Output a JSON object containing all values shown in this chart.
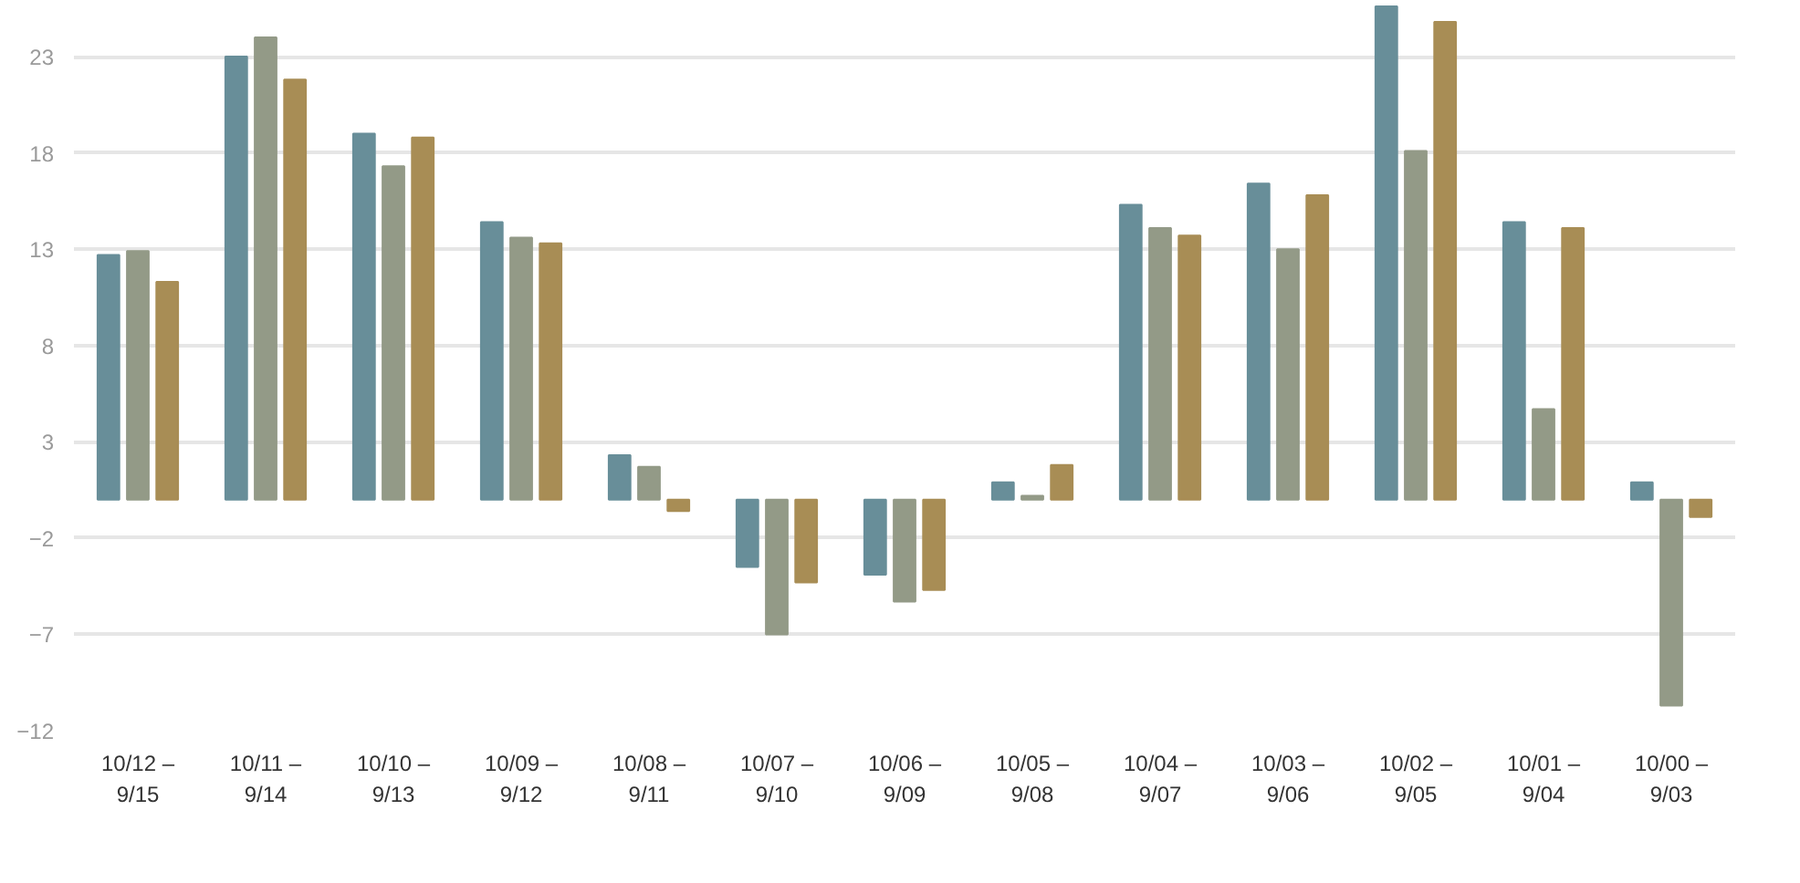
{
  "chart_data": {
    "type": "bar",
    "categories": [
      "10/12 –\n9/15",
      "10/11 –\n9/14",
      "10/10 –\n9/13",
      "10/09 –\n9/12",
      "10/08 –\n9/11",
      "10/07 –\n9/10",
      "10/06 –\n9/09",
      "10/05 –\n9/08",
      "10/04 –\n9/07",
      "10/03 –\n9/06",
      "10/02 –\n9/05",
      "10/01 –\n9/04",
      "10/00 –\n9/03"
    ],
    "series": [
      {
        "color": "#688e99",
        "values": [
          12.7,
          23.0,
          19.0,
          14.4,
          2.3,
          -3.5,
          -3.9,
          0.9,
          15.3,
          16.4,
          25.6,
          14.4,
          0.9
        ]
      },
      {
        "color": "#939a87",
        "values": [
          12.9,
          24.0,
          17.3,
          13.6,
          1.7,
          -7.0,
          -5.3,
          0.2,
          14.1,
          13.0,
          18.1,
          4.7,
          -10.7
        ]
      },
      {
        "color": "#a88d55",
        "values": [
          11.3,
          21.8,
          18.8,
          13.3,
          -0.6,
          -4.3,
          -4.7,
          1.8,
          13.7,
          15.8,
          24.8,
          14.1,
          -0.9
        ]
      }
    ],
    "ylim": [
      -12,
      25.7
    ],
    "yticks": [
      -12,
      -7,
      -2,
      3,
      8,
      13,
      18,
      23
    ],
    "grid": "y"
  }
}
